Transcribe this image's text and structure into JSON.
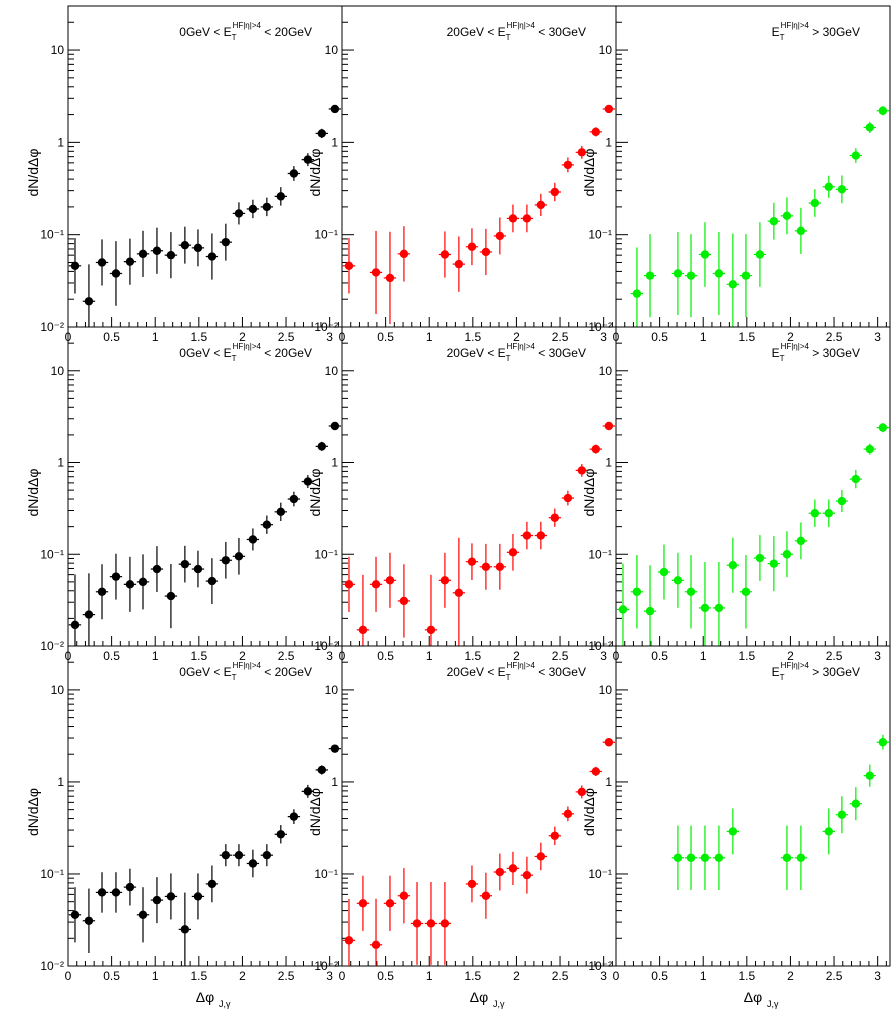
{
  "chart_data": {
    "type": "scatter",
    "layout": "3x3 grid",
    "x_scale": "linear",
    "y_scale": "log",
    "xlim": [
      0,
      3.14159
    ],
    "ylim": [
      0.01,
      30
    ],
    "x_ticks": [
      "0",
      "0.5",
      "1",
      "1.5",
      "2",
      "2.5",
      "3"
    ],
    "y_ticks": [
      {
        "value": 0.01,
        "label": "10⁻²"
      },
      {
        "value": 0.1,
        "label": "10⁻¹"
      },
      {
        "value": 1,
        "label": "1"
      },
      {
        "value": 10,
        "label": "10"
      }
    ],
    "ylabel": "dN/dΔφ",
    "xlabel_main": "Δφ",
    "xlabel_sub": "J,γ",
    "bin_centers": [
      0.08,
      0.24,
      0.39,
      0.55,
      0.71,
      0.86,
      1.02,
      1.18,
      1.34,
      1.49,
      1.65,
      1.81,
      1.96,
      2.12,
      2.28,
      2.44,
      2.59,
      2.75,
      2.91,
      3.06
    ],
    "columns": [
      {
        "color": "#000000",
        "label_parts": [
          "0GeV < E",
          "T",
          "HF|η|>4",
          " < 20GeV"
        ]
      },
      {
        "color": "#ff0000",
        "label_parts": [
          "20GeV < E",
          "T",
          "HF|η|>4",
          " < 30GeV"
        ]
      },
      {
        "color": "#00ee00",
        "label_parts": [
          "E",
          "T",
          "HF|η|>4",
          " > 30GeV"
        ]
      }
    ],
    "panels": [
      [
        {
          "y": [
            0.046,
            0.019,
            0.05,
            0.038,
            0.051,
            0.062,
            0.067,
            0.06,
            0.077,
            0.072,
            0.058,
            0.083,
            0.17,
            0.19,
            0.2,
            0.26,
            0.46,
            0.65,
            1.25,
            2.3
          ],
          "err": [
            0.3,
            0.4,
            0.25,
            0.35,
            0.25,
            0.25,
            0.25,
            0.25,
            0.2,
            0.2,
            0.25,
            0.2,
            0.12,
            0.1,
            0.1,
            0.1,
            0.08,
            0.07,
            0.05,
            0.04
          ]
        },
        {
          "y": [
            0.046,
            null,
            0.039,
            0.034,
            0.062,
            null,
            null,
            0.061,
            0.048,
            0.074,
            0.065,
            0.097,
            0.15,
            0.15,
            0.21,
            0.29,
            0.57,
            0.78,
            1.3,
            2.3
          ],
          "err": [
            0.3,
            null,
            0.45,
            0.5,
            0.3,
            null,
            null,
            0.25,
            0.3,
            0.2,
            0.25,
            0.2,
            0.15,
            0.15,
            0.12,
            0.1,
            0.08,
            0.07,
            0.05,
            0.04
          ]
        },
        {
          "y": [
            null,
            0.023,
            0.036,
            null,
            0.038,
            0.036,
            0.061,
            0.038,
            0.029,
            0.036,
            0.061,
            0.14,
            0.16,
            0.11,
            0.22,
            0.33,
            0.31,
            0.72,
            1.45,
            2.2
          ],
          "err": [
            null,
            0.5,
            0.45,
            null,
            0.45,
            0.45,
            0.35,
            0.45,
            0.55,
            0.45,
            0.35,
            0.2,
            0.2,
            0.25,
            0.15,
            0.12,
            0.15,
            0.08,
            0.06,
            0.05
          ]
        }
      ],
      [
        {
          "y": [
            0.017,
            0.022,
            0.039,
            0.057,
            0.047,
            0.05,
            0.069,
            0.035,
            0.078,
            0.069,
            0.051,
            0.086,
            0.095,
            0.145,
            0.21,
            0.29,
            0.4,
            0.62,
            1.5,
            2.5
          ],
          "err": [
            0.55,
            0.45,
            0.3,
            0.25,
            0.3,
            0.3,
            0.25,
            0.35,
            0.2,
            0.2,
            0.25,
            0.2,
            0.2,
            0.12,
            0.1,
            0.1,
            0.08,
            0.07,
            0.05,
            0.04
          ]
        },
        {
          "y": [
            0.047,
            0.015,
            0.047,
            0.052,
            0.031,
            null,
            0.015,
            0.052,
            0.038,
            0.083,
            0.073,
            0.073,
            0.105,
            0.16,
            0.16,
            0.25,
            0.41,
            0.82,
            1.4,
            2.5
          ],
          "err": [
            0.3,
            0.6,
            0.3,
            0.3,
            0.4,
            null,
            0.6,
            0.3,
            0.6,
            0.2,
            0.25,
            0.25,
            0.2,
            0.15,
            0.15,
            0.1,
            0.08,
            0.07,
            0.05,
            0.04
          ]
        },
        {
          "y": [
            0.025,
            0.039,
            0.024,
            0.064,
            0.052,
            0.039,
            0.026,
            0.026,
            0.076,
            0.039,
            0.091,
            0.079,
            0.1,
            0.14,
            0.28,
            0.28,
            0.38,
            0.66,
            1.4,
            2.4
          ],
          "err": [
            0.5,
            0.4,
            0.5,
            0.3,
            0.3,
            0.4,
            0.5,
            0.5,
            0.3,
            0.4,
            0.25,
            0.3,
            0.25,
            0.2,
            0.15,
            0.15,
            0.12,
            0.1,
            0.06,
            0.05
          ]
        }
      ],
      [
        {
          "y": [
            0.036,
            0.031,
            0.063,
            0.063,
            0.072,
            0.036,
            0.052,
            0.057,
            0.025,
            0.057,
            0.078,
            0.16,
            0.16,
            0.13,
            0.16,
            0.27,
            0.42,
            0.79,
            1.35,
            2.3
          ],
          "err": [
            0.3,
            0.35,
            0.22,
            0.22,
            0.2,
            0.3,
            0.25,
            0.25,
            0.4,
            0.25,
            0.2,
            0.12,
            0.12,
            0.15,
            0.12,
            0.1,
            0.08,
            0.07,
            0.05,
            0.04
          ]
        },
        {
          "y": [
            0.019,
            0.048,
            0.017,
            0.048,
            0.058,
            0.029,
            0.029,
            0.029,
            null,
            0.078,
            0.058,
            0.105,
            0.115,
            0.097,
            0.155,
            0.26,
            0.45,
            0.78,
            1.3,
            2.7
          ],
          "err": [
            0.45,
            0.3,
            0.5,
            0.3,
            0.3,
            0.45,
            0.45,
            0.45,
            null,
            0.2,
            0.25,
            0.2,
            0.18,
            0.2,
            0.15,
            0.1,
            0.08,
            0.07,
            0.05,
            0.04
          ]
        },
        {
          "y": [
            null,
            null,
            null,
            null,
            0.15,
            0.15,
            0.15,
            0.15,
            0.29,
            null,
            null,
            null,
            0.15,
            0.15,
            null,
            0.29,
            0.44,
            0.58,
            1.17,
            2.7
          ],
          "err": [
            null,
            null,
            null,
            null,
            0.35,
            0.35,
            0.35,
            0.35,
            0.25,
            null,
            null,
            null,
            0.35,
            0.35,
            null,
            0.25,
            0.2,
            0.18,
            0.12,
            0.08
          ]
        }
      ]
    ]
  }
}
